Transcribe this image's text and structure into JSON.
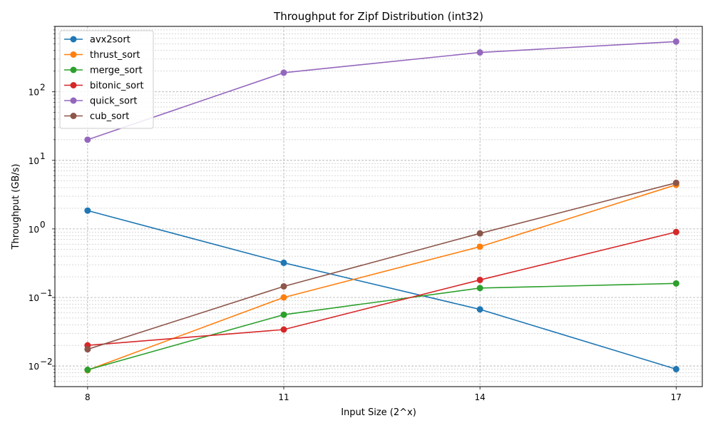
{
  "chart_data": {
    "type": "line",
    "title": "Throughput for Zipf Distribution (int32)",
    "xlabel": "Input Size (2^x)",
    "ylabel": "Throughput (GB/s)",
    "yscale": "log",
    "ylim": [
      0.005,
      900
    ],
    "xlim": [
      7.5,
      17.4
    ],
    "x": [
      8,
      11,
      14,
      17
    ],
    "x_tick_labels": [
      "8",
      "11",
      "14",
      "17"
    ],
    "y_tick_labels": [
      {
        "value": 0.01,
        "base": "10",
        "exp": "−2"
      },
      {
        "value": 0.1,
        "base": "10",
        "exp": "−1"
      },
      {
        "value": 1,
        "base": "10",
        "exp": "0"
      },
      {
        "value": 10,
        "base": "10",
        "exp": "1"
      },
      {
        "value": 100,
        "base": "10",
        "exp": "2"
      }
    ],
    "grid": true,
    "legend_position": "top-left",
    "series": [
      {
        "name": "avx2sort",
        "color": "#1f77b4",
        "values": [
          1.85,
          0.32,
          0.067,
          0.009
        ]
      },
      {
        "name": "thrust_sort",
        "color": "#ff7f0e",
        "values": [
          0.0087,
          0.1,
          0.55,
          4.4
        ]
      },
      {
        "name": "merge_sort",
        "color": "#2ca02c",
        "values": [
          0.0088,
          0.056,
          0.137,
          0.16
        ]
      },
      {
        "name": "bitonic_sort",
        "color": "#d62728",
        "values": [
          0.02,
          0.034,
          0.18,
          0.9
        ]
      },
      {
        "name": "quick_sort",
        "color": "#9467bd",
        "values": [
          20,
          190,
          375,
          540
        ]
      },
      {
        "name": "cub_sort",
        "color": "#8c564b",
        "values": [
          0.0175,
          0.145,
          0.86,
          4.7
        ]
      }
    ]
  }
}
